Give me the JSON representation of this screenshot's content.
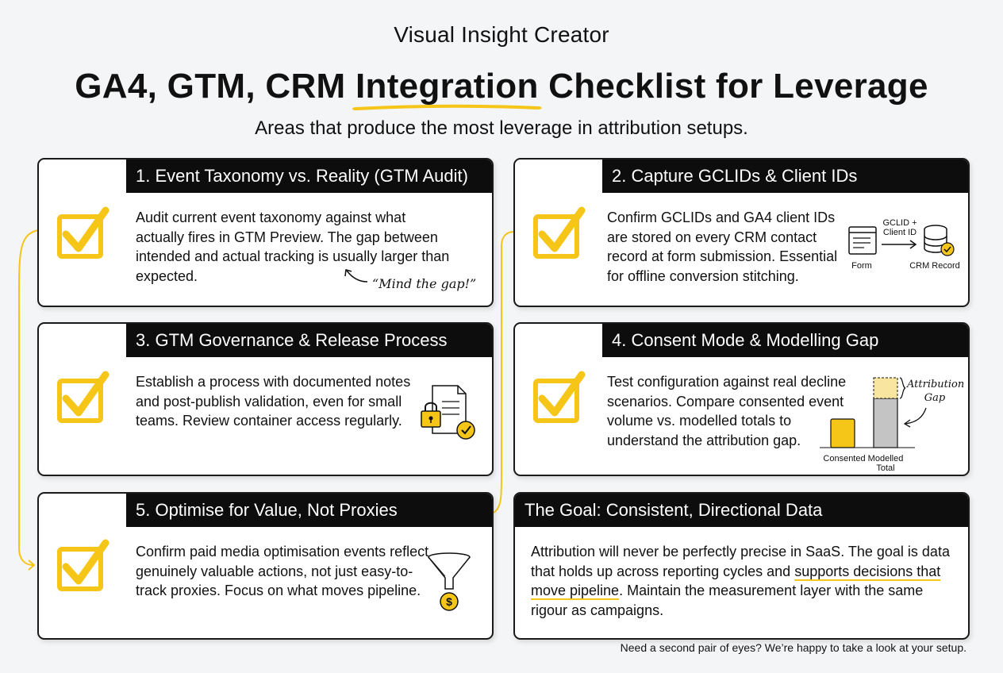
{
  "brand": "Visual Insight Creator",
  "title": {
    "before": "GA4, GTM, CRM ",
    "highlight": "Integration",
    "after": " Checklist for Leverage"
  },
  "subtitle": "Areas that produce the most leverage in attribution setups.",
  "colors": {
    "accent": "#f5c518",
    "header_bg": "#0d0d0d",
    "card_border": "#1a1a1a"
  },
  "cards": [
    {
      "heading": "1. Event Taxonomy vs. Reality (GTM Audit)",
      "body": "Audit current event taxonomy against what actually fires in GTM Preview. The gap between intended and actual tracking is usually larger than expected.",
      "note": "“Mind the gap!”",
      "icon": "checkmark-icon"
    },
    {
      "heading": "2. Capture GCLIDs & Client IDs",
      "body": "Confirm GCLIDs and GA4 client IDs are stored on every CRM contact record at form submission. Essential for offline conversion stitching.",
      "icon": "checkmark-icon",
      "diagram": {
        "form_label": "Form",
        "arrow_label": "GCLID + Client ID",
        "crm_label": "CRM Record"
      }
    },
    {
      "heading": "3. GTM Governance & Release Process",
      "body": "Establish a process with documented notes and post-publish validation, even for small teams. Review container access regularly.",
      "icon": "checkmark-icon",
      "illustration": "locked-document-icon"
    },
    {
      "heading": "4. Consent Mode & Modelling Gap",
      "body": "Test configuration against real decline scenarios. Compare consented event volume vs. modelled totals to understand the attribution gap.",
      "icon": "checkmark-icon",
      "mini_chart": {
        "consented_label": "Consented",
        "modelled_label": "Modelled Total",
        "gap_label": "Attribution Gap"
      }
    },
    {
      "heading": "5. Optimise for Value, Not Proxies",
      "body": "Confirm paid media optimisation events reflect genuinely valuable actions, not just easy-to-track proxies. Focus on what moves pipeline.",
      "icon": "checkmark-icon",
      "illustration": "funnel-dollar-icon"
    },
    {
      "heading": "The Goal: Consistent, Directional Data",
      "body_before": "Attribution will never be perfectly precise in SaaS. The goal is data that holds up across reporting cycles and ",
      "body_highlight": "supports decisions that move pipeline",
      "body_after": ". Maintain the measurement layer with the same rigour as campaigns."
    }
  ],
  "footer": "Need a second pair of eyes? We’re happy to take a look at your setup."
}
